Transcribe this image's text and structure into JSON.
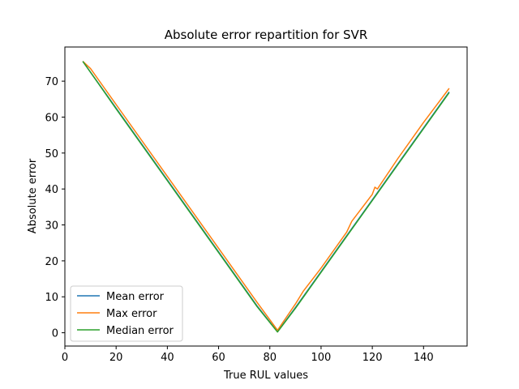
{
  "chart_data": {
    "type": "line",
    "title": "Absolute error repartition for SVR",
    "xlabel": "True RUL values",
    "ylabel": "Absolute error",
    "xlim": [
      0,
      157
    ],
    "ylim": [
      -3.7,
      79.5
    ],
    "xticks": [
      0,
      20,
      40,
      60,
      80,
      100,
      120,
      140
    ],
    "yticks": [
      0,
      10,
      20,
      30,
      40,
      50,
      60,
      70
    ],
    "grid": false,
    "legend_position": "lower left",
    "series": [
      {
        "name": "Mean error",
        "color": "#1f77b4",
        "x": [
          7,
          20,
          40,
          60,
          75,
          83,
          90,
          100,
          110,
          121,
          130,
          140,
          150
        ],
        "y": [
          75.5,
          62.5,
          42.5,
          22.5,
          7.5,
          0.3,
          7.0,
          17.0,
          27.0,
          38.0,
          47.0,
          57.0,
          67.0
        ]
      },
      {
        "name": "Max error",
        "color": "#ff7f0e",
        "x": [
          7,
          10,
          20,
          40,
          60,
          75,
          83,
          90,
          93,
          100,
          110,
          112,
          120,
          121,
          122,
          130,
          140,
          150
        ],
        "y": [
          75.5,
          73.5,
          63.5,
          43.5,
          23.5,
          8.5,
          0.7,
          8.0,
          11.5,
          18.0,
          28.0,
          31.0,
          38.5,
          40.5,
          40.0,
          48.5,
          58.5,
          68.0
        ]
      },
      {
        "name": "Median error",
        "color": "#2ca02c",
        "x": [
          7,
          20,
          40,
          60,
          75,
          83,
          90,
          100,
          110,
          121,
          130,
          140,
          150
        ],
        "y": [
          75.5,
          62.3,
          42.3,
          22.3,
          7.3,
          0.2,
          6.8,
          16.8,
          26.8,
          37.8,
          46.8,
          56.8,
          66.8
        ]
      }
    ]
  }
}
